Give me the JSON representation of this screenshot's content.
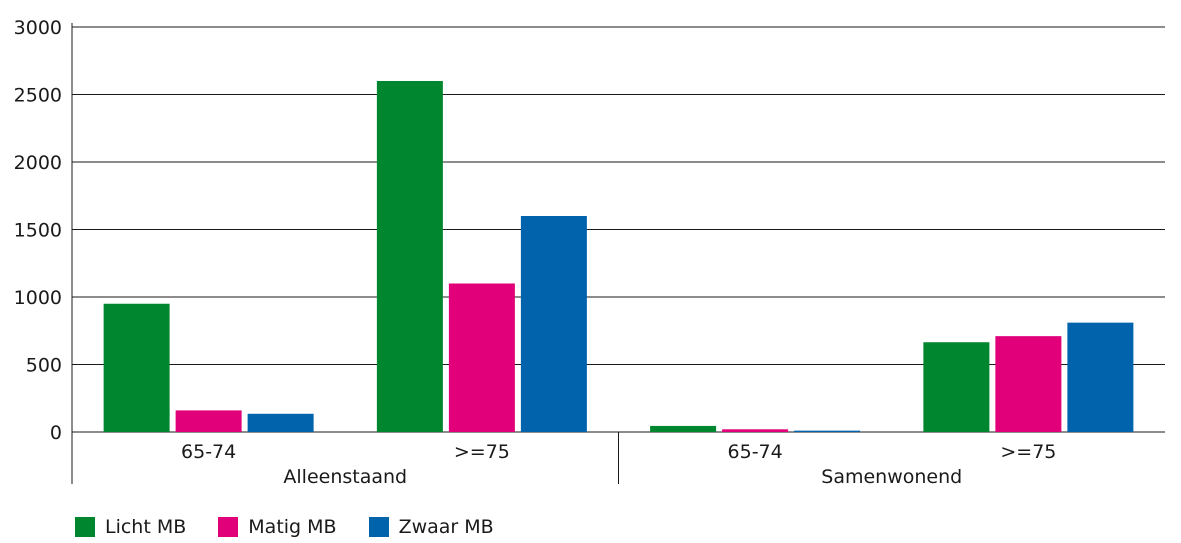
{
  "chart_data": {
    "type": "bar",
    "y_axis": {
      "min": 0,
      "max": 3000,
      "ticks": [
        "0",
        "500",
        "1000",
        "1500",
        "2000",
        "2500",
        "3000"
      ],
      "grid": true
    },
    "groups": [
      {
        "label": "Alleenstaand",
        "categories": [
          "65-74",
          ">=75"
        ]
      },
      {
        "label": "Samenwonend",
        "categories": [
          "65-74",
          ">=75"
        ]
      }
    ],
    "categories": [
      "65-74",
      ">=75",
      "65-74",
      ">=75"
    ],
    "series": [
      {
        "name": "Licht MB",
        "color": "#00862f",
        "values": [
          950,
          2600,
          45,
          665
        ]
      },
      {
        "name": "Matig MB",
        "color": "#e2007a",
        "values": [
          160,
          1100,
          20,
          710
        ]
      },
      {
        "name": "Zwaar MB",
        "color": "#0063ac",
        "values": [
          135,
          1600,
          10,
          810
        ]
      }
    ],
    "legend_position": "bottom-left"
  }
}
